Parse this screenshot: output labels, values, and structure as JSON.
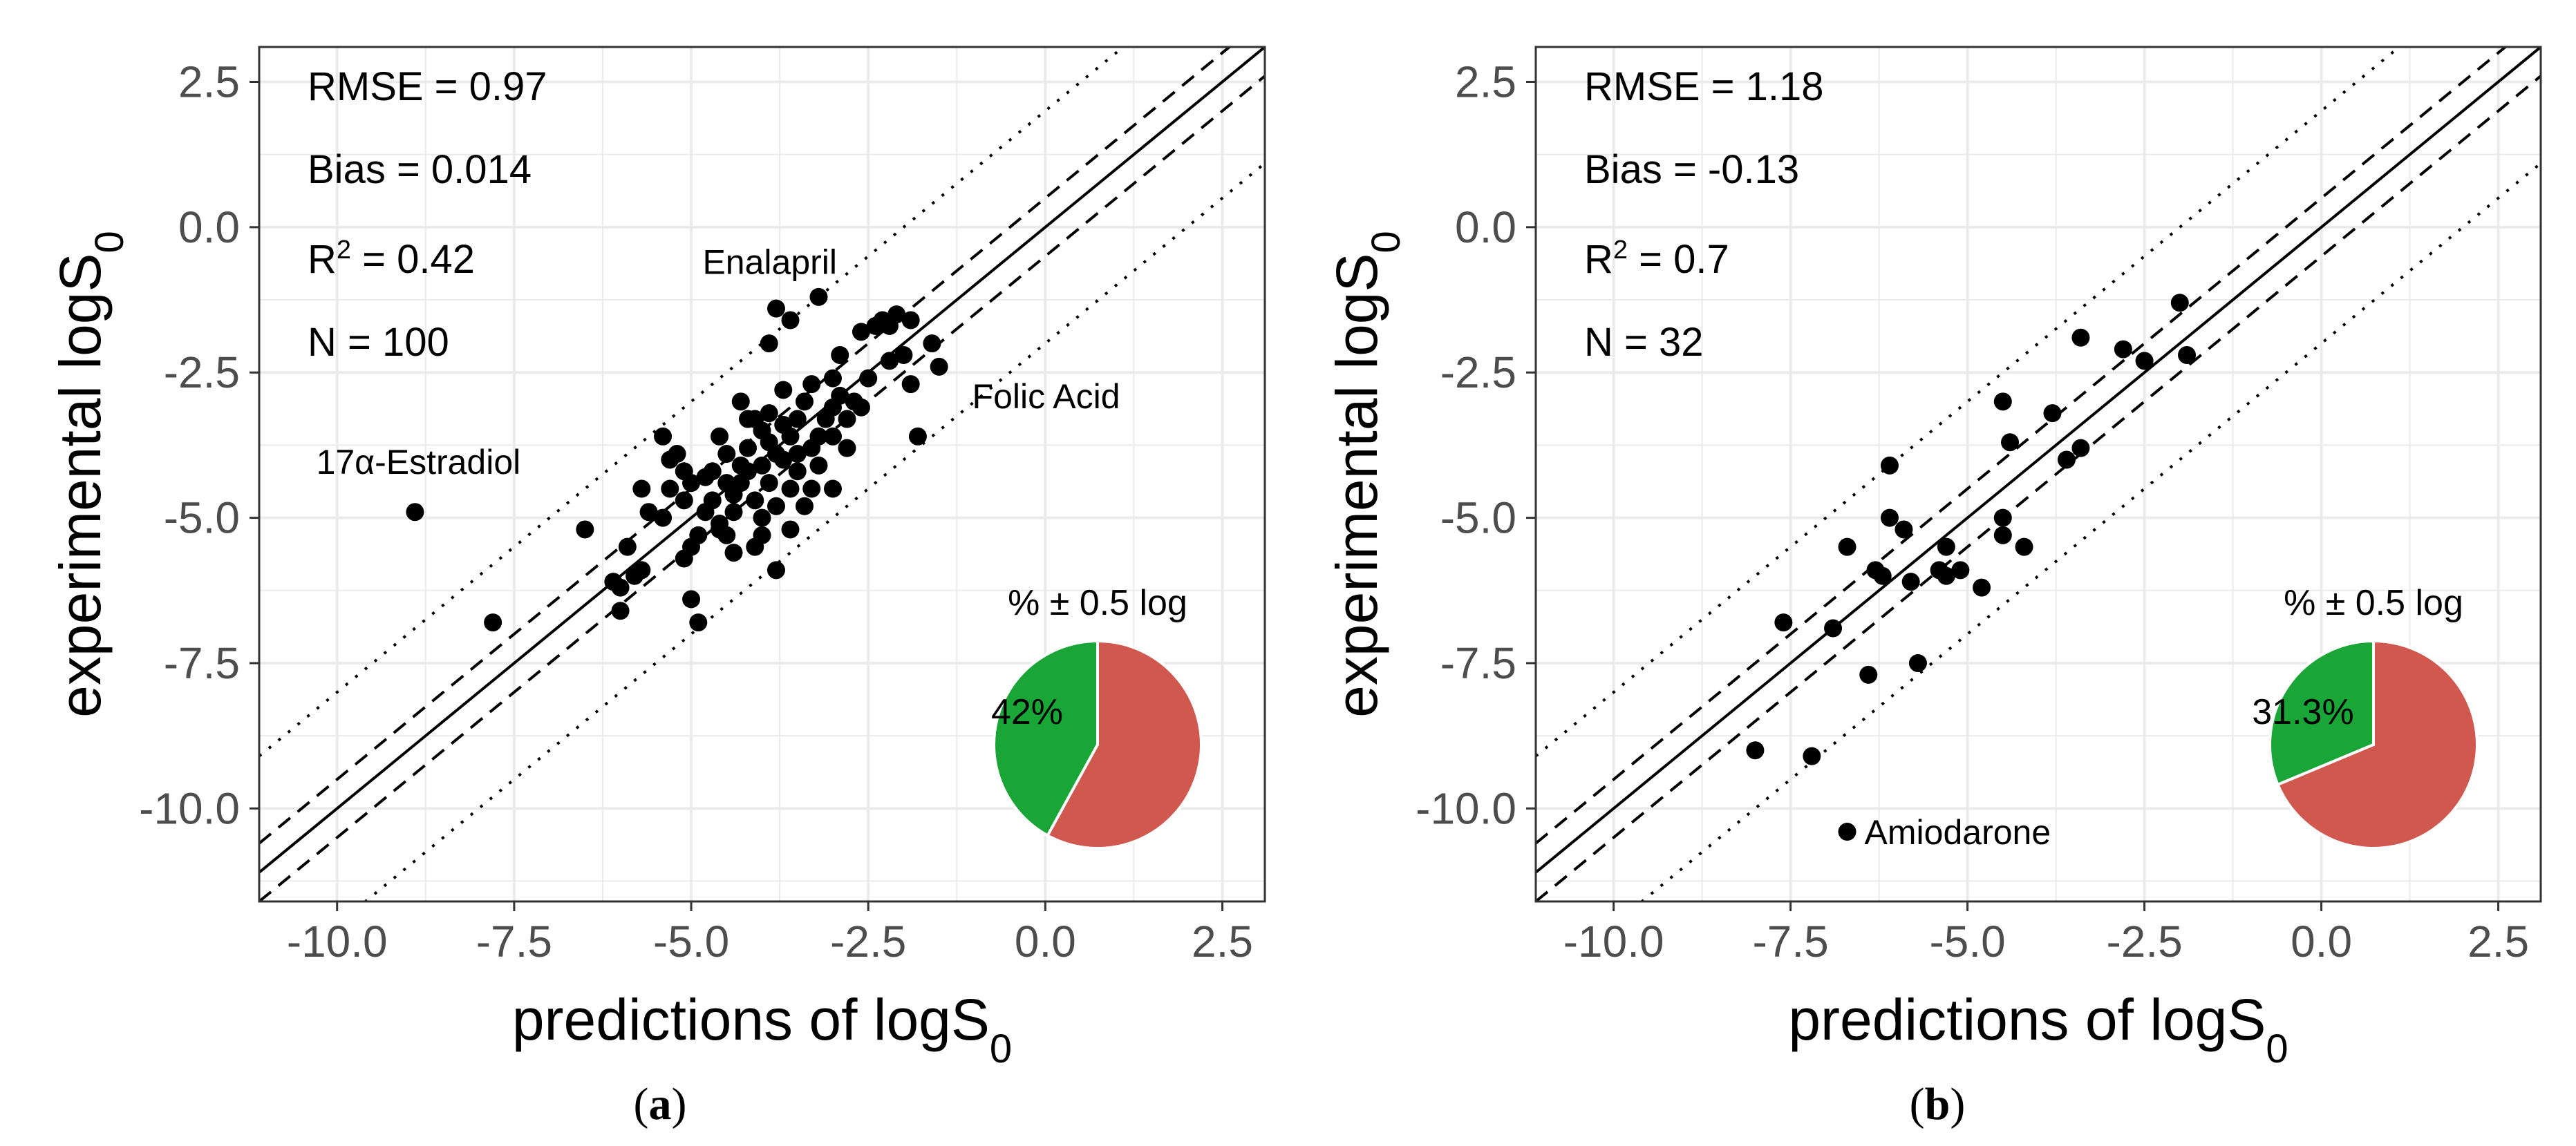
{
  "colors": {
    "within": "#1aa637",
    "outside": "#d1584f",
    "grid": "#ebebeb",
    "points": "#000000"
  },
  "chart_data": [
    {
      "type": "scatter",
      "panel_label": "a",
      "xlabel": "predictions of logS",
      "xlabel_sub": "0",
      "ylabel": "experimental logS",
      "ylabel_sub": "0",
      "xlim": [
        -11.1,
        3.1
      ],
      "ylim": [
        -11.6,
        3.1
      ],
      "x_ticks": [
        -10.0,
        -7.5,
        -5.0,
        -2.5,
        0.0,
        2.5
      ],
      "y_ticks": [
        -10.0,
        -7.5,
        -5.0,
        -2.5,
        0.0,
        2.5
      ],
      "tick_labels": [
        "-10.0",
        "-7.5",
        "-5.0",
        "-2.5",
        "0.0",
        "2.5"
      ],
      "reference_lines": {
        "identity": 0,
        "dashed": 0.5,
        "dotted": 2.0
      },
      "grid": true,
      "stats": [
        {
          "text": "RMSE = 0.97"
        },
        {
          "text": "Bias = 0.014"
        },
        {
          "base": "R",
          "sup": "2",
          "rest": " = 0.42"
        },
        {
          "text": "N = 100"
        }
      ],
      "annotations": [
        {
          "text": "Enalapril",
          "x": -3.5,
          "y": -1.4
        },
        {
          "text": "17α-Estradiol",
          "x": -8.9,
          "y": -4.9
        },
        {
          "text": "Folic Acid",
          "x": -4.8,
          "y": -6.8
        }
      ],
      "pie": {
        "title": "% ± 0.5 log",
        "within_label": "42%",
        "within": 42
      },
      "points": [
        [
          -8.9,
          -4.9
        ],
        [
          -7.8,
          -6.8
        ],
        [
          -6.5,
          -5.2
        ],
        [
          -6.0,
          -6.2
        ],
        [
          -6.0,
          -6.6
        ],
        [
          -5.9,
          -5.5
        ],
        [
          -5.8,
          -6.0
        ],
        [
          -5.7,
          -5.9
        ],
        [
          -5.6,
          -4.9
        ],
        [
          -5.7,
          -4.5
        ],
        [
          -5.4,
          -3.6
        ],
        [
          -5.2,
          -3.9
        ],
        [
          -5.3,
          -4.5
        ],
        [
          -5.0,
          -4.4
        ],
        [
          -5.1,
          -4.7
        ],
        [
          -5.0,
          -5.5
        ],
        [
          -5.1,
          -5.7
        ],
        [
          -5.0,
          -6.4
        ],
        [
          -4.9,
          -6.8
        ],
        [
          -4.8,
          -4.9
        ],
        [
          -4.9,
          -5.3
        ],
        [
          -4.7,
          -4.2
        ],
        [
          -4.6,
          -3.6
        ],
        [
          -4.7,
          -4.7
        ],
        [
          -4.6,
          -5.1
        ],
        [
          -4.5,
          -5.3
        ],
        [
          -4.4,
          -5.6
        ],
        [
          -4.3,
          -4.4
        ],
        [
          -4.5,
          -3.9
        ],
        [
          -4.4,
          -4.6
        ],
        [
          -4.3,
          -3.0
        ],
        [
          -4.2,
          -3.8
        ],
        [
          -4.2,
          -4.2
        ],
        [
          -4.1,
          -4.7
        ],
        [
          -4.0,
          -5.0
        ],
        [
          -4.0,
          -5.3
        ],
        [
          -4.0,
          -3.5
        ],
        [
          -3.9,
          -3.2
        ],
        [
          -3.9,
          -4.4
        ],
        [
          -3.8,
          -3.9
        ],
        [
          -3.8,
          -4.8
        ],
        [
          -3.8,
          -5.9
        ],
        [
          -3.7,
          -4.0
        ],
        [
          -3.7,
          -3.4
        ],
        [
          -3.6,
          -3.6
        ],
        [
          -3.6,
          -4.5
        ],
        [
          -3.6,
          -5.2
        ],
        [
          -3.5,
          -4.2
        ],
        [
          -3.5,
          -3.3
        ],
        [
          -3.4,
          -4.8
        ],
        [
          -3.4,
          -3.0
        ],
        [
          -3.3,
          -3.8
        ],
        [
          -3.3,
          -4.5
        ],
        [
          -3.2,
          -4.1
        ],
        [
          -3.2,
          -3.6
        ],
        [
          -3.1,
          -3.3
        ],
        [
          -3.0,
          -3.1
        ],
        [
          -3.0,
          -2.6
        ],
        [
          -3.0,
          -4.5
        ],
        [
          -2.9,
          -2.2
        ],
        [
          -2.8,
          -3.3
        ],
        [
          -2.8,
          -3.8
        ],
        [
          -2.7,
          -3.0
        ],
        [
          -2.6,
          -1.8
        ],
        [
          -2.5,
          -2.6
        ],
        [
          -2.4,
          -1.7
        ],
        [
          -2.3,
          -1.6
        ],
        [
          -2.2,
          -2.3
        ],
        [
          -2.1,
          -1.5
        ],
        [
          -2.0,
          -2.2
        ],
        [
          -1.9,
          -1.6
        ],
        [
          -1.9,
          -2.7
        ],
        [
          -1.8,
          -3.6
        ],
        [
          -1.6,
          -2.0
        ],
        [
          -1.5,
          -2.4
        ],
        [
          -3.9,
          -2.0
        ],
        [
          -3.8,
          -1.4
        ],
        [
          -3.2,
          -1.2
        ],
        [
          -3.6,
          -1.6
        ],
        [
          -4.1,
          -3.3
        ],
        [
          -4.3,
          -4.1
        ],
        [
          -4.4,
          -4.9
        ],
        [
          -4.6,
          -5.2
        ],
        [
          -4.8,
          -4.3
        ],
        [
          -5.1,
          -4.2
        ],
        [
          -5.3,
          -4.0
        ],
        [
          -5.4,
          -5.0
        ],
        [
          -3.5,
          -3.9
        ],
        [
          -3.9,
          -3.7
        ],
        [
          -4.2,
          -3.3
        ],
        [
          -3.7,
          -2.8
        ],
        [
          -3.3,
          -2.7
        ],
        [
          -2.9,
          -2.9
        ],
        [
          -2.6,
          -3.1
        ],
        [
          -2.2,
          -1.7
        ],
        [
          -3.0,
          -3.6
        ],
        [
          -4.0,
          -4.1
        ],
        [
          -4.5,
          -4.4
        ],
        [
          -4.1,
          -5.5
        ],
        [
          -6.1,
          -6.1
        ]
      ]
    },
    {
      "type": "scatter",
      "panel_label": "b",
      "xlabel": "predictions of logS",
      "xlabel_sub": "0",
      "ylabel": "experimental logS",
      "ylabel_sub": "0",
      "xlim": [
        -11.1,
        3.1
      ],
      "ylim": [
        -11.6,
        3.1
      ],
      "x_ticks": [
        -10.0,
        -7.5,
        -5.0,
        -2.5,
        0.0,
        2.5
      ],
      "y_ticks": [
        -10.0,
        -7.5,
        -5.0,
        -2.5,
        0.0,
        2.5
      ],
      "tick_labels": [
        "-10.0",
        "-7.5",
        "-5.0",
        "-2.5",
        "0.0",
        "2.5"
      ],
      "reference_lines": {
        "identity": 0,
        "dashed": 0.5,
        "dotted": 2.0
      },
      "grid": true,
      "stats": [
        {
          "text": "RMSE = 1.18"
        },
        {
          "text": "Bias = -0.13"
        },
        {
          "base": "R",
          "sup": "2",
          "rest": " = 0.7"
        },
        {
          "text": "N = 32"
        }
      ],
      "annotations": [
        {
          "text": "Amiodarone",
          "x": -6.7,
          "y": -10.4
        }
      ],
      "pie": {
        "title": "% ± 0.5 log",
        "within_label": "31.3%",
        "within": 31.3
      },
      "points": [
        [
          -6.7,
          -10.4
        ],
        [
          -8.0,
          -9.0
        ],
        [
          -7.2,
          -9.1
        ],
        [
          -7.6,
          -6.8
        ],
        [
          -6.9,
          -6.9
        ],
        [
          -6.7,
          -5.5
        ],
        [
          -6.4,
          -7.7
        ],
        [
          -6.3,
          -5.9
        ],
        [
          -6.2,
          -6.0
        ],
        [
          -6.1,
          -4.1
        ],
        [
          -6.1,
          -5.0
        ],
        [
          -5.9,
          -5.2
        ],
        [
          -5.8,
          -6.1
        ],
        [
          -5.7,
          -7.5
        ],
        [
          -5.4,
          -5.9
        ],
        [
          -5.3,
          -5.5
        ],
        [
          -5.3,
          -6.0
        ],
        [
          -5.1,
          -5.9
        ],
        [
          -4.8,
          -6.2
        ],
        [
          -4.5,
          -3.0
        ],
        [
          -4.4,
          -3.7
        ],
        [
          -4.5,
          -5.0
        ],
        [
          -4.5,
          -5.3
        ],
        [
          -4.2,
          -5.5
        ],
        [
          -3.8,
          -3.2
        ],
        [
          -3.6,
          -4.0
        ],
        [
          -3.4,
          -3.8
        ],
        [
          -3.4,
          -1.9
        ],
        [
          -2.8,
          -2.1
        ],
        [
          -2.5,
          -2.3
        ],
        [
          -2.0,
          -1.3
        ],
        [
          -1.9,
          -2.2
        ]
      ]
    }
  ]
}
